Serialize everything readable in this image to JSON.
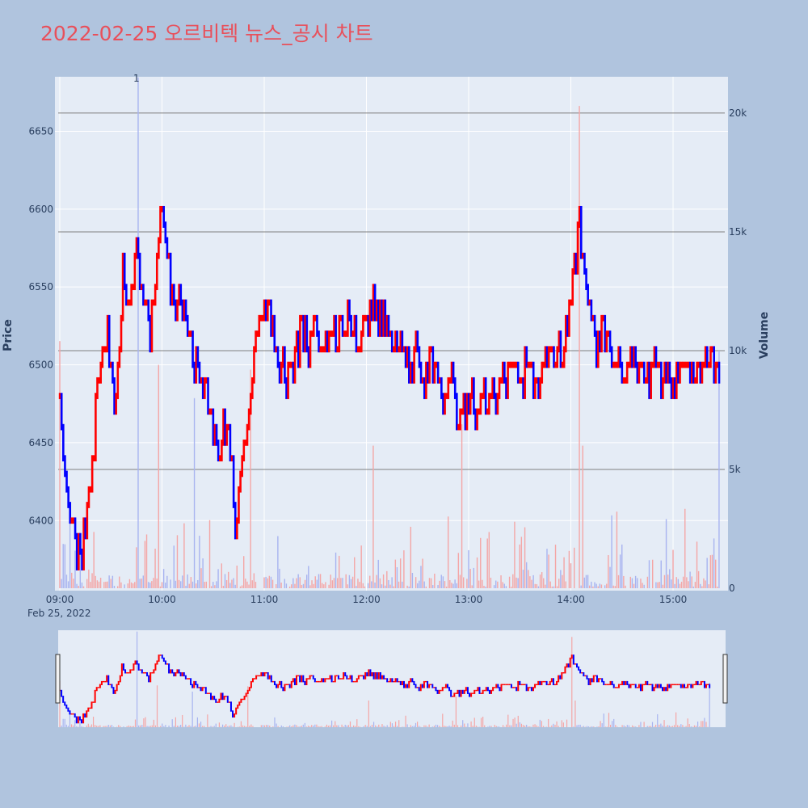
{
  "chart_data": {
    "type": "candlestick",
    "title": "2022-02-25 오르비텍 뉴스_공시 차트",
    "date_label": "Feb 25, 2022",
    "y_left_label": "Price",
    "y_right_label": "Volume",
    "price_ticks": [
      "6400",
      "6450",
      "6500",
      "6550",
      "6600",
      "6650"
    ],
    "volume_ticks": [
      "0",
      "5k",
      "10k",
      "15k",
      "20k"
    ],
    "time_ticks": [
      "09:00",
      "10:00",
      "11:00",
      "12:00",
      "13:00",
      "14:00",
      "15:00"
    ],
    "price_range": [
      6355,
      6685
    ],
    "volume_range": [
      0,
      21800
    ],
    "volume_hlines": [
      5000,
      10000,
      15000,
      20000
    ],
    "annotation": {
      "text": "1",
      "time": "09:45"
    },
    "price_path": [
      [
        "09:00",
        6480
      ],
      [
        "09:02",
        6440
      ],
      [
        "09:05",
        6420
      ],
      [
        "09:08",
        6400
      ],
      [
        "09:10",
        6380
      ],
      [
        "09:12",
        6370
      ],
      [
        "09:15",
        6400
      ],
      [
        "09:18",
        6420
      ],
      [
        "09:20",
        6450
      ],
      [
        "09:22",
        6490
      ],
      [
        "09:24",
        6500
      ],
      [
        "09:26",
        6510
      ],
      [
        "09:28",
        6520
      ],
      [
        "09:30",
        6500
      ],
      [
        "09:32",
        6480
      ],
      [
        "09:34",
        6490
      ],
      [
        "09:37",
        6560
      ],
      [
        "09:39",
        6540
      ],
      [
        "09:41",
        6530
      ],
      [
        "09:44",
        6580
      ],
      [
        "09:46",
        6570
      ],
      [
        "09:48",
        6550
      ],
      [
        "09:51",
        6530
      ],
      [
        "09:53",
        6510
      ],
      [
        "09:55",
        6540
      ],
      [
        "09:58",
        6590
      ],
      [
        "10:00",
        6600
      ],
      [
        "10:02",
        6570
      ],
      [
        "10:05",
        6550
      ],
      [
        "10:08",
        6540
      ],
      [
        "10:10",
        6560
      ],
      [
        "10:12",
        6540
      ],
      [
        "10:15",
        6520
      ],
      [
        "10:17",
        6510
      ],
      [
        "10:19",
        6490
      ],
      [
        "10:21",
        6500
      ],
      [
        "10:23",
        6490
      ],
      [
        "10:25",
        6480
      ],
      [
        "10:28",
        6470
      ],
      [
        "10:30",
        6460
      ],
      [
        "10:33",
        6450
      ],
      [
        "10:36",
        6460
      ],
      [
        "10:39",
        6450
      ],
      [
        "10:41",
        6440
      ],
      [
        "10:43",
        6400
      ],
      [
        "10:45",
        6420
      ],
      [
        "10:47",
        6440
      ],
      [
        "10:50",
        6460
      ],
      [
        "10:52",
        6480
      ],
      [
        "10:55",
        6520
      ],
      [
        "10:58",
        6530
      ],
      [
        "11:01",
        6540
      ],
      [
        "11:04",
        6520
      ],
      [
        "11:07",
        6510
      ],
      [
        "11:10",
        6500
      ],
      [
        "11:13",
        6490
      ],
      [
        "11:16",
        6500
      ],
      [
        "11:19",
        6510
      ],
      [
        "11:22",
        6520
      ],
      [
        "11:26",
        6510
      ],
      [
        "11:30",
        6520
      ],
      [
        "11:35",
        6520
      ],
      [
        "11:40",
        6520
      ],
      [
        "11:45",
        6520
      ],
      [
        "11:50",
        6530
      ],
      [
        "11:55",
        6520
      ],
      [
        "12:00",
        6530
      ],
      [
        "12:04",
        6540
      ],
      [
        "12:08",
        6530
      ],
      [
        "12:12",
        6520
      ],
      [
        "12:16",
        6510
      ],
      [
        "12:20",
        6510
      ],
      [
        "12:25",
        6500
      ],
      [
        "12:30",
        6510
      ],
      [
        "12:34",
        6480
      ],
      [
        "12:38",
        6500
      ],
      [
        "12:42",
        6490
      ],
      [
        "12:46",
        6480
      ],
      [
        "12:50",
        6490
      ],
      [
        "12:53",
        6470
      ],
      [
        "12:56",
        6460
      ],
      [
        "13:00",
        6480
      ],
      [
        "13:05",
        6470
      ],
      [
        "13:10",
        6480
      ],
      [
        "13:15",
        6480
      ],
      [
        "13:20",
        6490
      ],
      [
        "13:25",
        6500
      ],
      [
        "13:30",
        6490
      ],
      [
        "13:35",
        6500
      ],
      [
        "13:40",
        6490
      ],
      [
        "13:45",
        6500
      ],
      [
        "13:50",
        6510
      ],
      [
        "13:55",
        6510
      ],
      [
        "14:00",
        6530
      ],
      [
        "14:02",
        6560
      ],
      [
        "14:04",
        6580
      ],
      [
        "14:05",
        6600
      ],
      [
        "14:07",
        6560
      ],
      [
        "14:09",
        6550
      ],
      [
        "14:12",
        6530
      ],
      [
        "14:15",
        6510
      ],
      [
        "14:20",
        6520
      ],
      [
        "14:25",
        6510
      ],
      [
        "14:30",
        6500
      ],
      [
        "14:35",
        6510
      ],
      [
        "14:40",
        6500
      ],
      [
        "14:45",
        6490
      ],
      [
        "14:50",
        6500
      ],
      [
        "14:55",
        6490
      ],
      [
        "15:00",
        6490
      ],
      [
        "15:05",
        6500
      ],
      [
        "15:10",
        6500
      ],
      [
        "15:15",
        6490
      ],
      [
        "15:20",
        6510
      ],
      [
        "15:25",
        6500
      ],
      [
        "15:27",
        6500
      ]
    ],
    "volume_spikes": [
      [
        "09:46",
        21500
      ],
      [
        "14:05",
        20300
      ],
      [
        "09:00",
        10400
      ],
      [
        "09:58",
        9400
      ],
      [
        "10:19",
        8000
      ],
      [
        "10:52",
        9200
      ],
      [
        "12:04",
        6000
      ],
      [
        "12:56",
        6900
      ],
      [
        "14:07",
        6000
      ],
      [
        "15:27",
        10000
      ]
    ],
    "colors": {
      "up": "#ff0000",
      "down": "#0000ff",
      "up_volume": "#f4a6a6",
      "down_volume": "#a8b4f0",
      "plot_bg": "#e5ecf6",
      "paper_bg": "#b0c4de",
      "grid": "#ffffff",
      "hline": "#808080",
      "title": "#e8505b"
    }
  }
}
